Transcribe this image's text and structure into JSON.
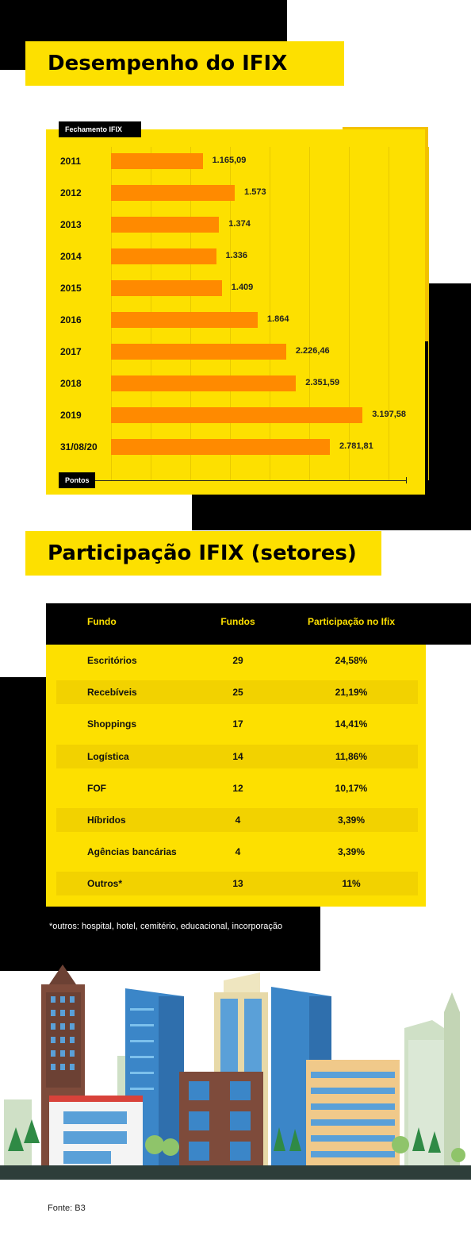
{
  "section1": {
    "title": "Desempenho do IFIX"
  },
  "chart_data": {
    "type": "bar",
    "orientation": "horizontal",
    "title": "Desempenho do IFIX",
    "series_label": "Fechamento IFIX",
    "xlabel": "Pontos",
    "categories": [
      "2011",
      "2012",
      "2013",
      "2014",
      "2015",
      "2016",
      "2017",
      "2018",
      "2019",
      "31/08/20"
    ],
    "values": [
      1165.09,
      1573,
      1374,
      1336,
      1409,
      1864,
      2226.46,
      2351.59,
      3197.58,
      2781.81
    ],
    "value_labels": [
      "1.165,09",
      "1.573",
      "1.374",
      "1.336",
      "1.409",
      "1.864",
      "2.226,46",
      "2.351,59",
      "3.197,58",
      "2.781,81"
    ],
    "xlim": [
      0,
      3750
    ],
    "grid": true,
    "colors": {
      "bar": "#ff8a00",
      "background": "#fde000",
      "accent": "#000000"
    }
  },
  "section2": {
    "title": "Participação IFIX (setores)",
    "table": {
      "headers": [
        "Fundo",
        "Fundos",
        "Participação no Ifix"
      ],
      "rows": [
        [
          "Escritórios",
          "29",
          "24,58%"
        ],
        [
          "Recebíveis",
          "25",
          "21,19%"
        ],
        [
          "Shoppings",
          "17",
          "14,41%"
        ],
        [
          "Logística",
          "14",
          "11,86%"
        ],
        [
          "FOF",
          "12",
          "10,17%"
        ],
        [
          "Híbridos",
          "4",
          "3,39%"
        ],
        [
          "Agências bancárias",
          "4",
          "3,39%"
        ],
        [
          "Outros*",
          "13",
          "11%"
        ]
      ]
    },
    "note": "*outros: hospital, hotel, cemitério, educacional, incorporação"
  },
  "footer": {
    "source": "Fonte: B3"
  },
  "colors": {
    "yellow": "#fde000",
    "black": "#000000",
    "orange": "#ff8a00"
  }
}
